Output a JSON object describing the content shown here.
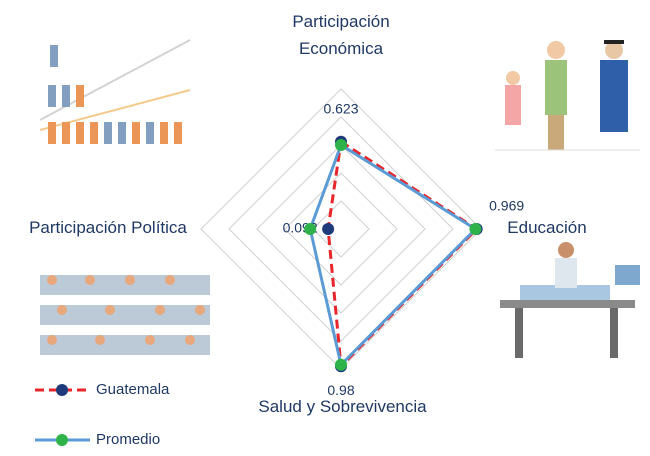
{
  "chart_data": {
    "type": "radar",
    "categories": [
      "Participación Económica",
      "Educación",
      "Salud y Sobrevivencia",
      "Participación Política"
    ],
    "rlim": [
      0,
      1
    ],
    "rticks": [
      0.2,
      0.4,
      0.6,
      0.8,
      1.0
    ],
    "grid": true,
    "series": [
      {
        "name": "Guatemala",
        "color": "#e8252a",
        "marker_color": "#1f3a7a",
        "dashed": true,
        "values": [
          0.623,
          0.969,
          0.98,
          0.092
        ],
        "show_labels": true
      },
      {
        "name": "Promedio",
        "color": "#5b9bd5",
        "marker_color": "#2db34a",
        "dashed": false,
        "values": [
          0.6,
          0.96,
          0.97,
          0.22
        ],
        "show_labels": false
      }
    ]
  }
}
